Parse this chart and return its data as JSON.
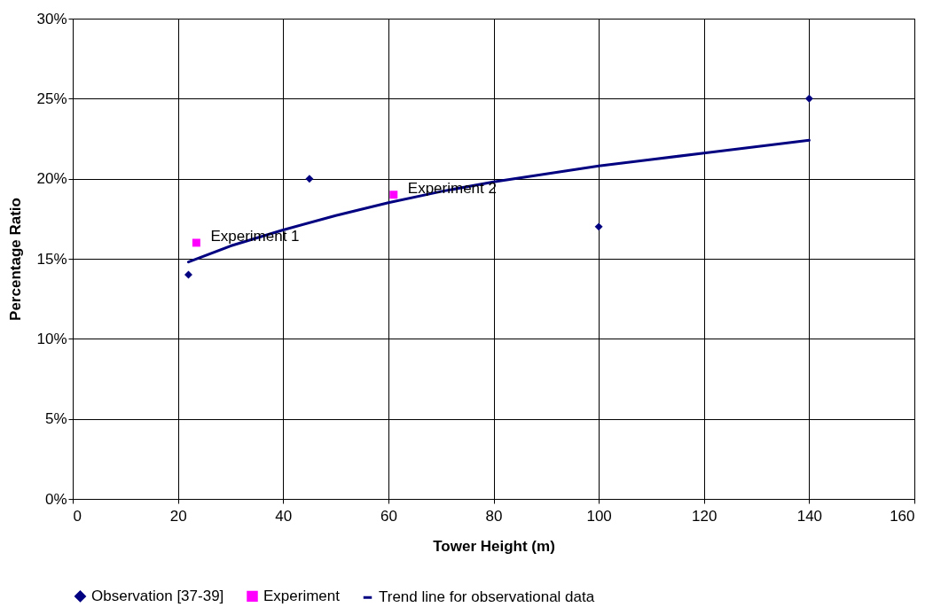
{
  "chart_data": {
    "type": "scatter",
    "xlabel": "Tower Height (m)",
    "ylabel": "Percentage Ratio",
    "xlim": [
      0,
      160
    ],
    "xticks": [
      0,
      20,
      40,
      60,
      80,
      100,
      120,
      140,
      160
    ],
    "ylim": [
      0,
      30
    ],
    "yticks": [
      {
        "value": 0,
        "label": "0%"
      },
      {
        "value": 5,
        "label": "5%"
      },
      {
        "value": 10,
        "label": "10%"
      },
      {
        "value": 15,
        "label": "15%"
      },
      {
        "value": 20,
        "label": "20%"
      },
      {
        "value": 25,
        "label": "25%"
      },
      {
        "value": 30,
        "label": "30%"
      }
    ],
    "grid": true,
    "legend": "bottom",
    "series": [
      {
        "name": "Observation [37-39]",
        "type": "scatter",
        "marker": "diamond",
        "color": "#000080",
        "x": [
          22,
          45,
          100,
          140
        ],
        "values": [
          14,
          20,
          17,
          25
        ]
      },
      {
        "name": "Experiment",
        "type": "scatter",
        "marker": "square",
        "color": "#ff00ff",
        "x": [
          23.5,
          61
        ],
        "values": [
          16,
          19
        ]
      },
      {
        "name": "Trend line for observational data",
        "type": "line",
        "marker": "none",
        "color": "#000080",
        "x": [
          22,
          30,
          40,
          50,
          60,
          70,
          80,
          90,
          100,
          110,
          120,
          130,
          140
        ],
        "values": [
          14.8,
          15.8,
          16.8,
          17.7,
          18.5,
          19.2,
          19.8,
          20.3,
          20.8,
          21.2,
          21.6,
          22.0,
          22.4
        ]
      }
    ],
    "annotations": [
      {
        "text": "Experiment 1",
        "x": 23.5,
        "y": 16
      },
      {
        "text": "Experiment 2",
        "x": 61,
        "y": 19
      }
    ]
  }
}
